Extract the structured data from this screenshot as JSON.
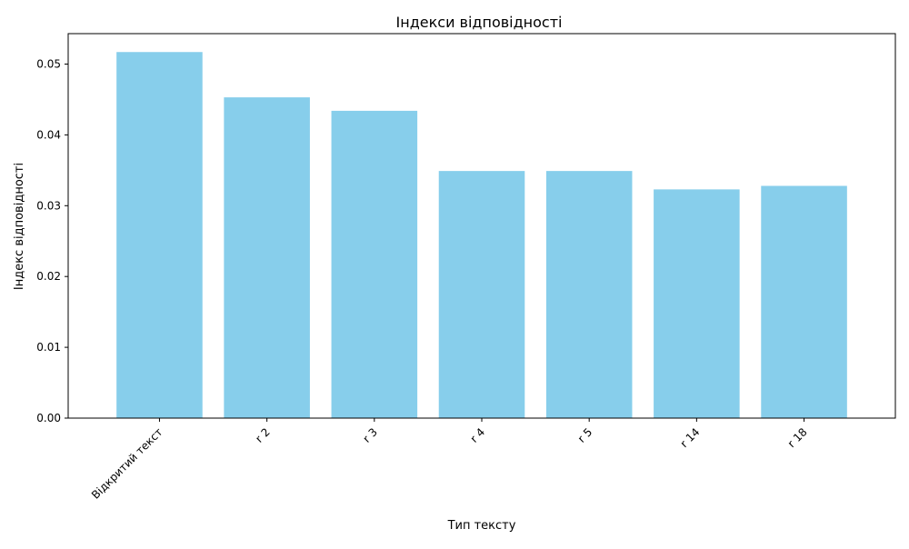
{
  "chart_data": {
    "type": "bar",
    "title": "Індекси відповідності",
    "xlabel": "Тип тексту",
    "ylabel": "Індекс відповідності",
    "categories": [
      "Відкритий текст",
      "r 2",
      "r 3",
      "r 4",
      "r 5",
      "r 14",
      "r 18"
    ],
    "values": [
      0.0517,
      0.0453,
      0.0434,
      0.0349,
      0.0349,
      0.0323,
      0.0328
    ],
    "ylim": [
      0,
      0.0543
    ],
    "yticks": [
      0.0,
      0.01,
      0.02,
      0.03,
      0.04,
      0.05
    ],
    "ytick_labels": [
      "0.00",
      "0.01",
      "0.02",
      "0.03",
      "0.04",
      "0.05"
    ],
    "bar_color": "#87ceeb",
    "grid": false,
    "legend": "none"
  }
}
